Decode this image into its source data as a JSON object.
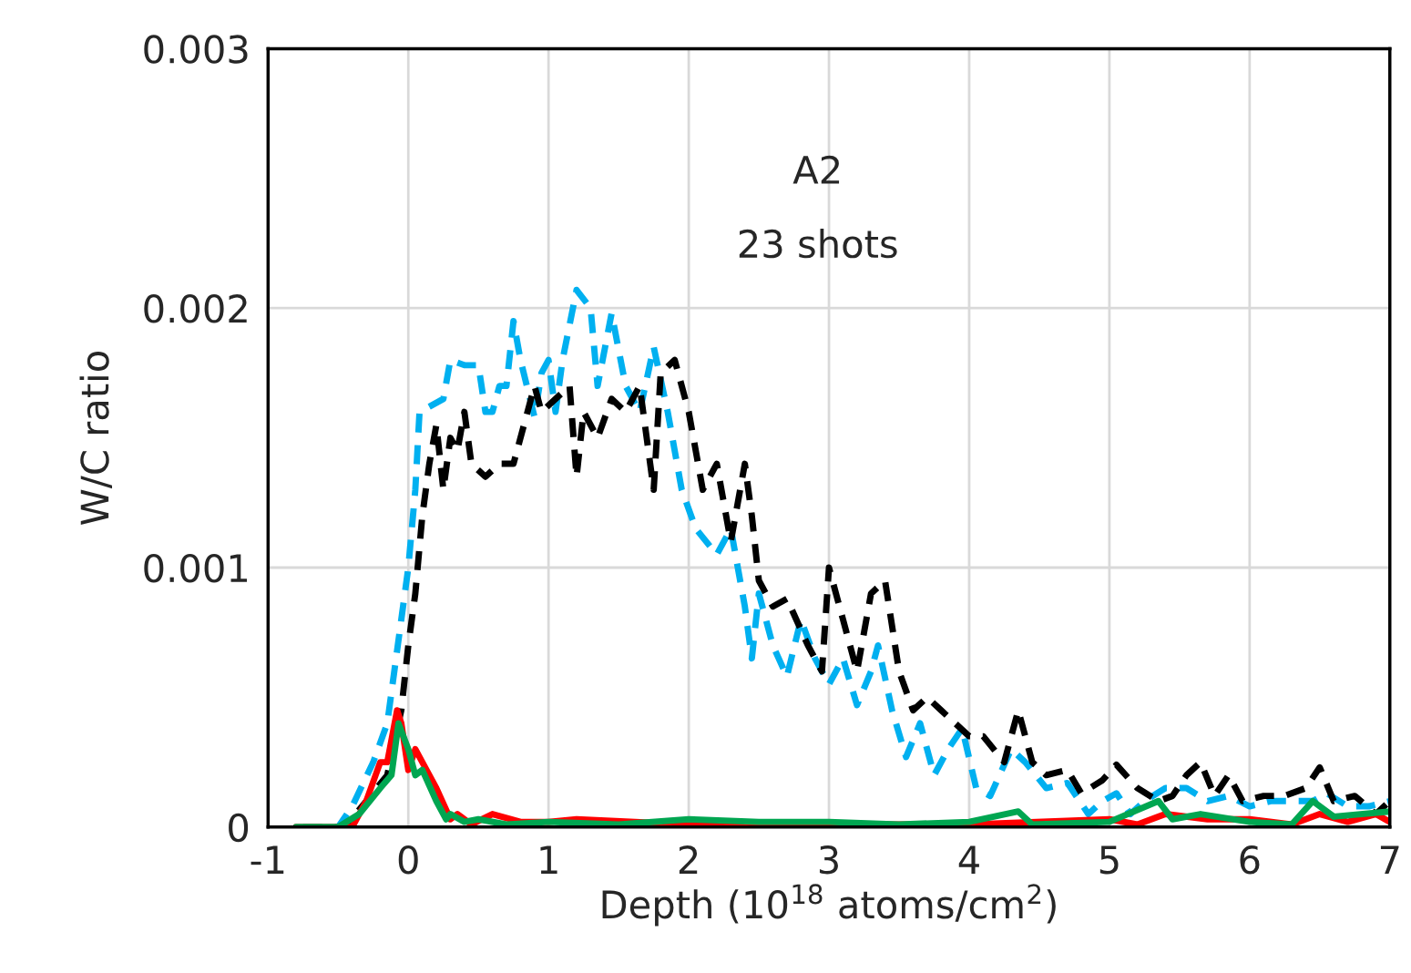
{
  "chart_data": {
    "type": "line",
    "xlabel": "Depth (10$^{18}$ atoms/cm$^{2}$)",
    "ylabel": "W/C ratio",
    "annotations": [
      "A2",
      "23 shots"
    ],
    "xlim": [
      -1,
      7
    ],
    "xticks": [
      -1,
      0,
      1,
      2,
      3,
      4,
      5,
      6,
      7
    ],
    "ylim": [
      0,
      0.003
    ],
    "yticks": [
      0,
      0.001,
      0.002,
      0.003
    ],
    "grid": true,
    "legend": false,
    "marker": "none",
    "series": [
      {
        "color": "#00b0f0",
        "line_style": "dashed",
        "x": [
          -0.75,
          -0.5,
          -0.4,
          -0.25,
          -0.15,
          -0.1,
          -0.05,
          0.0,
          0.05,
          0.08,
          0.15,
          0.25,
          0.3,
          0.4,
          0.5,
          0.55,
          0.6,
          0.65,
          0.7,
          0.75,
          0.8,
          0.9,
          0.95,
          1.0,
          1.05,
          1.1,
          1.2,
          1.3,
          1.35,
          1.45,
          1.55,
          1.65,
          1.75,
          1.85,
          1.95,
          2.05,
          2.2,
          2.3,
          2.4,
          2.45,
          2.5,
          2.6,
          2.7,
          2.8,
          2.9,
          3.0,
          3.1,
          3.2,
          3.3,
          3.35,
          3.45,
          3.55,
          3.65,
          3.75,
          3.85,
          3.95,
          4.05,
          4.15,
          4.3,
          4.4,
          4.55,
          4.7,
          4.85,
          4.95,
          5.05,
          5.15,
          5.25,
          5.4,
          5.55,
          5.7,
          5.85,
          6.0,
          6.15,
          6.3,
          6.45,
          6.55,
          6.7,
          6.85,
          7.0
        ],
        "values": [
          0,
          0,
          8e-05,
          0.00025,
          0.0004,
          0.0006,
          0.0008,
          0.001,
          0.0013,
          0.0016,
          0.00162,
          0.00165,
          0.0018,
          0.00178,
          0.00178,
          0.0016,
          0.0016,
          0.0017,
          0.0017,
          0.00195,
          0.0018,
          0.00158,
          0.00175,
          0.0018,
          0.0016,
          0.0018,
          0.00207,
          0.002,
          0.0017,
          0.00198,
          0.0017,
          0.0016,
          0.00185,
          0.0016,
          0.0013,
          0.00115,
          0.00105,
          0.00115,
          0.00085,
          0.00065,
          0.0009,
          0.0007,
          0.00058,
          0.0008,
          0.00065,
          0.00055,
          0.00065,
          0.00047,
          0.0006,
          0.0007,
          0.00045,
          0.00027,
          0.0004,
          0.0002,
          0.0003,
          0.00038,
          0.00015,
          0.00012,
          0.0003,
          0.00025,
          0.00015,
          0.00017,
          5e-05,
          0.0001,
          0.00013,
          5e-05,
          0.0001,
          0.00015,
          0.00015,
          0.0001,
          0.00012,
          8e-05,
          0.0001,
          0.0001,
          0.0001,
          0.00013,
          8e-05,
          8e-05,
          0.0001
        ]
      },
      {
        "color": "#000000",
        "line_style": "dashed",
        "x": [
          -0.75,
          -0.45,
          -0.3,
          -0.15,
          -0.05,
          0.0,
          0.05,
          0.1,
          0.15,
          0.2,
          0.25,
          0.3,
          0.35,
          0.4,
          0.45,
          0.55,
          0.65,
          0.75,
          0.85,
          0.9,
          0.95,
          1.05,
          1.15,
          1.2,
          1.25,
          1.35,
          1.45,
          1.55,
          1.65,
          1.75,
          1.8,
          1.9,
          2.0,
          2.1,
          2.2,
          2.3,
          2.4,
          2.45,
          2.5,
          2.6,
          2.7,
          2.85,
          2.95,
          3.0,
          3.1,
          3.2,
          3.3,
          3.4,
          3.5,
          3.6,
          3.7,
          3.8,
          3.9,
          4.0,
          4.1,
          4.25,
          4.35,
          4.45,
          4.55,
          4.7,
          4.8,
          4.95,
          5.05,
          5.2,
          5.35,
          5.45,
          5.55,
          5.65,
          5.75,
          5.85,
          5.95,
          6.1,
          6.25,
          6.4,
          6.5,
          6.6,
          6.75,
          6.9,
          7.0
        ],
        "values": [
          0,
          0,
          0.0001,
          0.0002,
          0.00045,
          0.0007,
          0.0009,
          0.0012,
          0.0014,
          0.00155,
          0.0013,
          0.0015,
          0.00145,
          0.0016,
          0.0014,
          0.00135,
          0.0014,
          0.0014,
          0.0016,
          0.0017,
          0.0016,
          0.00165,
          0.0017,
          0.00135,
          0.0016,
          0.0015,
          0.00165,
          0.0016,
          0.0017,
          0.0013,
          0.00175,
          0.0018,
          0.0016,
          0.0013,
          0.0014,
          0.0011,
          0.0014,
          0.0012,
          0.00095,
          0.00085,
          0.00088,
          0.0007,
          0.0006,
          0.001,
          0.0008,
          0.0006,
          0.0009,
          0.00095,
          0.0006,
          0.00045,
          0.0005,
          0.00045,
          0.0004,
          0.00035,
          0.00035,
          0.00025,
          0.00045,
          0.00025,
          0.0002,
          0.00022,
          0.00013,
          0.00018,
          0.00024,
          0.00015,
          0.0001,
          0.00012,
          0.0002,
          0.00025,
          0.00012,
          0.0002,
          0.0001,
          0.00012,
          0.00012,
          0.00015,
          0.00023,
          0.0001,
          0.00012,
          5e-05,
          0.0001
        ]
      },
      {
        "color": "#ff0000",
        "line_style": "solid",
        "x": [
          -0.8,
          -0.4,
          -0.3,
          -0.2,
          -0.15,
          -0.08,
          -0.05,
          0.0,
          0.05,
          0.1,
          0.2,
          0.3,
          0.35,
          0.45,
          0.6,
          0.8,
          1.0,
          1.2,
          1.5,
          2,
          3,
          4,
          4.9,
          5.0,
          5.2,
          5.4,
          5.7,
          6.0,
          6.3,
          6.5,
          6.7,
          6.9,
          7.0
        ],
        "values": [
          0,
          0,
          0.0001,
          0.00025,
          0.00025,
          0.00045,
          0.0004,
          0.00022,
          0.0003,
          0.00025,
          0.00015,
          3e-05,
          5e-05,
          1e-05,
          5e-05,
          2e-05,
          2e-05,
          3e-05,
          null,
          1e-05,
          null,
          1e-05,
          null,
          3e-05,
          1e-05,
          5e-05,
          3e-05,
          3e-05,
          1e-05,
          5e-05,
          2e-05,
          5e-05,
          2e-05
        ]
      },
      {
        "color": "#00a651",
        "line_style": "solid",
        "x": [
          -0.8,
          -0.5,
          -0.35,
          -0.2,
          -0.12,
          -0.07,
          0.0,
          0.05,
          0.1,
          0.2,
          0.27,
          0.3,
          0.4,
          0.5,
          0.7,
          1.0,
          1.5,
          2.0,
          2.5,
          3.0,
          3.5,
          4.0,
          4.35,
          4.45,
          5.0,
          5.35,
          5.45,
          5.65,
          6.0,
          6.3,
          6.45,
          6.6,
          7.0
        ],
        "values": [
          0,
          0,
          5e-05,
          0.00015,
          0.0002,
          0.0004,
          0.0003,
          0.0002,
          0.00022,
          0.0001,
          3e-05,
          5e-05,
          2e-05,
          3e-05,
          1e-05,
          2e-05,
          1e-05,
          3e-05,
          2e-05,
          2e-05,
          1e-05,
          2e-05,
          6e-05,
          1e-05,
          2e-05,
          0.0001,
          3e-05,
          5e-05,
          2e-05,
          1e-05,
          0.0001,
          4e-05,
          6e-05
        ]
      }
    ]
  }
}
